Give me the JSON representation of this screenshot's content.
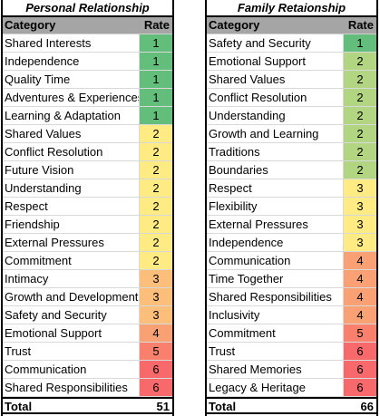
{
  "colors": {
    "1": "#63be7b",
    "2": "#ffeb84",
    "3": "#fcbf7b",
    "4": "#f9a074",
    "5": "#f8806d",
    "6": "#f8696b",
    "family_2": "#b1d580",
    "family_3": "#ffeb84"
  },
  "personal": {
    "title": "Personal Relationship",
    "header": {
      "category": "Category",
      "rate": "Rate"
    },
    "rows": [
      {
        "category": "Shared Interests",
        "rate": "1"
      },
      {
        "category": "Independence",
        "rate": "1"
      },
      {
        "category": "Quality Time",
        "rate": "1"
      },
      {
        "category": "Adventures & Experiences",
        "rate": "1"
      },
      {
        "category": "Learning & Adaptation",
        "rate": "1"
      },
      {
        "category": "Shared Values",
        "rate": "2"
      },
      {
        "category": "Conflict Resolution",
        "rate": "2"
      },
      {
        "category": "Future Vision",
        "rate": "2"
      },
      {
        "category": "Understanding",
        "rate": "2"
      },
      {
        "category": "Respect",
        "rate": "2"
      },
      {
        "category": "Friendship",
        "rate": "2"
      },
      {
        "category": "External Pressures",
        "rate": "2"
      },
      {
        "category": "Commitment",
        "rate": "2"
      },
      {
        "category": "Intimacy",
        "rate": "3"
      },
      {
        "category": "Growth and Development",
        "rate": "3"
      },
      {
        "category": "Safety and Security",
        "rate": "3"
      },
      {
        "category": "Emotional Support",
        "rate": "4"
      },
      {
        "category": "Trust",
        "rate": "5"
      },
      {
        "category": "Communication",
        "rate": "6"
      },
      {
        "category": "Shared Responsibilities",
        "rate": "6"
      }
    ],
    "total_label": "Total",
    "total_value": "51"
  },
  "family": {
    "title": "Family Retaionship",
    "header": {
      "category": "Category",
      "rate": "Rate"
    },
    "rows": [
      {
        "category": "Safety and Security",
        "rate": "1"
      },
      {
        "category": "Emotional Support",
        "rate": "2"
      },
      {
        "category": "Shared Values",
        "rate": "2"
      },
      {
        "category": "Conflict Resolution",
        "rate": "2"
      },
      {
        "category": "Understanding",
        "rate": "2"
      },
      {
        "category": "Growth and Learning",
        "rate": "2"
      },
      {
        "category": "Traditions",
        "rate": "2"
      },
      {
        "category": "Boundaries",
        "rate": "2"
      },
      {
        "category": "Respect",
        "rate": "3"
      },
      {
        "category": "Flexibility",
        "rate": "3"
      },
      {
        "category": "External Pressures",
        "rate": "3"
      },
      {
        "category": "Independence",
        "rate": "3"
      },
      {
        "category": "Communication",
        "rate": "4"
      },
      {
        "category": "Time Together",
        "rate": "4"
      },
      {
        "category": "Shared Responsibilities",
        "rate": "4"
      },
      {
        "category": "Inclusivity",
        "rate": "4"
      },
      {
        "category": "Commitment",
        "rate": "5"
      },
      {
        "category": "Trust",
        "rate": "6"
      },
      {
        "category": "Shared Memories",
        "rate": "6"
      },
      {
        "category": "Legacy & Heritage",
        "rate": "6"
      }
    ],
    "total_label": "Total",
    "total_value": "66"
  }
}
